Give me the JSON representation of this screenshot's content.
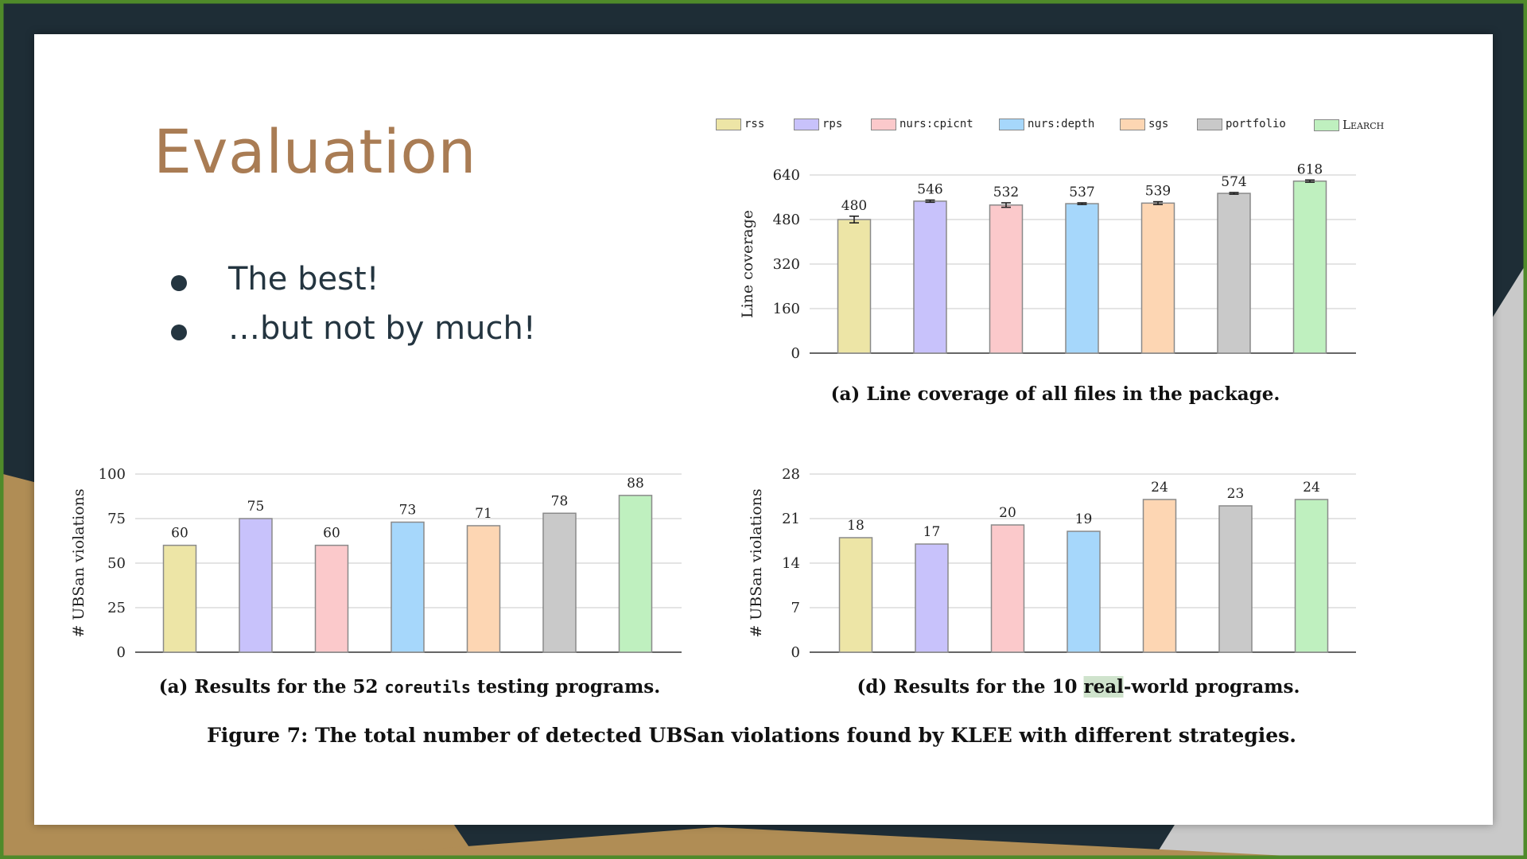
{
  "slide": {
    "title": "Evaluation",
    "bullets": [
      "The best!",
      "…but not by much!"
    ]
  },
  "legend": [
    {
      "label": "rss",
      "color": "#ede5a6"
    },
    {
      "label": "rps",
      "color": "#c8c2fb"
    },
    {
      "label": "nurs:cpicnt",
      "color": "#fbc9cb"
    },
    {
      "label": "nurs:depth",
      "color": "#a6d7fb"
    },
    {
      "label": "sgs",
      "color": "#fdd6b3"
    },
    {
      "label": "portfolio",
      "color": "#c9c9c9"
    },
    {
      "label": "Learch",
      "color": "#bff0bf"
    }
  ],
  "captions": {
    "line_coverage": "(a) Line coverage of all files in the package.",
    "coreutils_prefix": "(a) Results for the 52 ",
    "coreutils_code": "coreutils",
    "coreutils_suffix": " testing programs.",
    "realworld_prefix": "(d) Results for the 10 ",
    "realworld_highlight": "real",
    "realworld_suffix": "-world programs.",
    "figure": "Figure 7: The total number of detected UBSan violations found by KLEE with different strategies."
  },
  "chart_data": [
    {
      "id": "line-coverage",
      "type": "bar",
      "categories": [
        "rss",
        "rps",
        "nurs:cpicnt",
        "nurs:depth",
        "sgs",
        "portfolio",
        "Learch"
      ],
      "values": [
        480,
        546,
        532,
        537,
        539,
        574,
        618
      ],
      "error": [
        12,
        4,
        8,
        3,
        5,
        3,
        4
      ],
      "ylabel": "Line coverage",
      "yticks": [
        0,
        160,
        320,
        480,
        640
      ],
      "ylim": [
        0,
        640
      ],
      "grid": true
    },
    {
      "id": "coreutils-ubsan",
      "type": "bar",
      "categories": [
        "rss",
        "rps",
        "nurs:cpicnt",
        "nurs:depth",
        "sgs",
        "portfolio",
        "Learch"
      ],
      "values": [
        60,
        75,
        60,
        73,
        71,
        78,
        88
      ],
      "ylabel": "# UBSan violations",
      "yticks": [
        0,
        25,
        50,
        75,
        100
      ],
      "ylim": [
        0,
        100
      ],
      "grid": true
    },
    {
      "id": "realworld-ubsan",
      "type": "bar",
      "categories": [
        "rss",
        "rps",
        "nurs:cpicnt",
        "nurs:depth",
        "sgs",
        "portfolio",
        "Learch"
      ],
      "values": [
        18,
        17,
        20,
        19,
        24,
        23,
        24
      ],
      "ylabel": "# UBSan violations",
      "yticks": [
        0,
        7,
        14,
        21,
        28
      ],
      "ylim": [
        0,
        28
      ],
      "grid": true
    }
  ]
}
